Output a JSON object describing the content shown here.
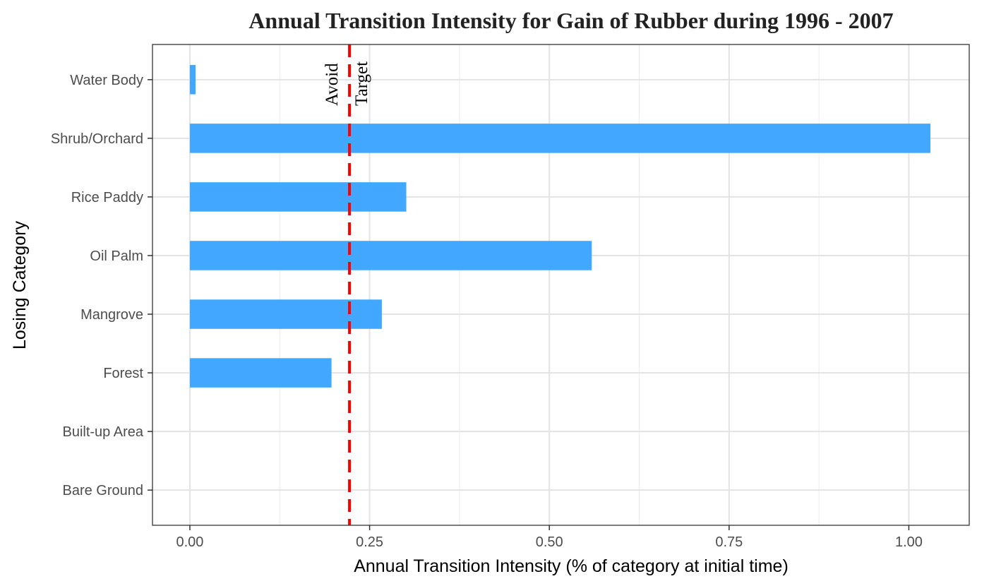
{
  "chart_data": {
    "type": "bar",
    "orientation": "horizontal",
    "title": "Annual Transition Intensity for Gain of  Rubber during 1996 - 2007",
    "xlabel": "Annual Transition Intensity (% of category at initial time)",
    "ylabel": "Losing Category",
    "categories": [
      "Bare Ground",
      "Built-up Area",
      "Forest",
      "Mangrove",
      "Oil Palm",
      "Rice Paddy",
      "Shrub/Orchard",
      "Water Body"
    ],
    "values": [
      0,
      0,
      0.197,
      0.267,
      0.559,
      0.301,
      1.03,
      0.008
    ],
    "xlim": [
      -0.052,
      1.084
    ],
    "x_ticks": [
      0,
      0.25,
      0.5,
      0.75,
      1.0
    ],
    "x_tick_labels": [
      "0.00",
      "0.25",
      "0.50",
      "0.75",
      "1.00"
    ],
    "bar_color": "#42a7ff",
    "grid": true,
    "reference_line": {
      "value": 0.222,
      "color": "#ff0000",
      "style": "dashed",
      "label_left": "Avoid",
      "label_right": "Target"
    }
  }
}
